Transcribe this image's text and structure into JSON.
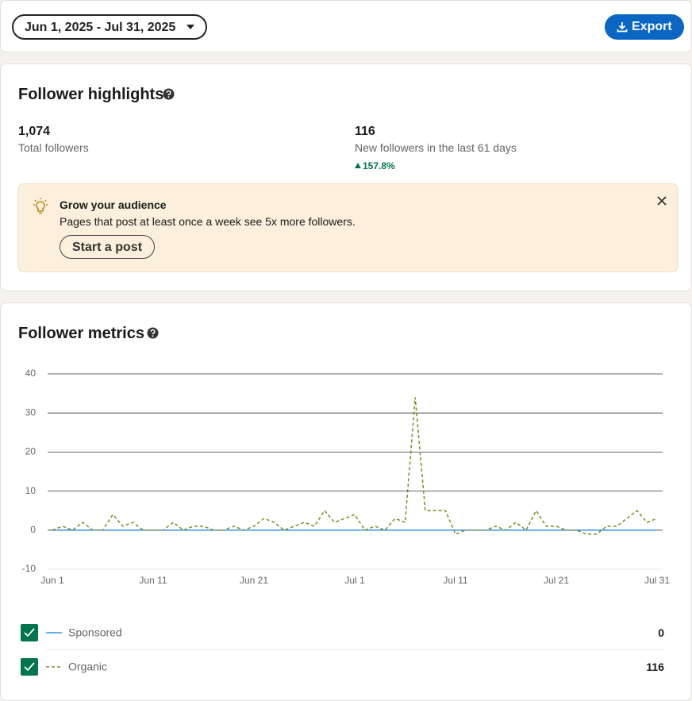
{
  "header": {
    "date_range": "Jun 1, 2025 - Jul 31, 2025",
    "export": "Export"
  },
  "highlights": {
    "title": "Follower highlights",
    "total": {
      "value": "1,074",
      "label": "Total followers"
    },
    "new": {
      "value": "116",
      "label": "New followers in the last 61 days",
      "change": "157.8%"
    },
    "banner": {
      "title": "Grow your audience",
      "text": "Pages that post at least once a week see 5x more followers.",
      "button": "Start a post"
    }
  },
  "metrics": {
    "title": "Follower metrics"
  },
  "chart_data": {
    "type": "line",
    "categories": [
      "Jun 1",
      null,
      null,
      null,
      null,
      null,
      null,
      null,
      null,
      null,
      "Jun 11",
      null,
      null,
      null,
      null,
      null,
      null,
      null,
      null,
      null,
      "Jun 21",
      null,
      null,
      null,
      null,
      null,
      null,
      null,
      null,
      null,
      "Jul 1",
      null,
      null,
      null,
      null,
      null,
      null,
      null,
      null,
      null,
      "Jul 11",
      null,
      null,
      null,
      null,
      null,
      null,
      null,
      null,
      null,
      "Jul 21",
      null,
      null,
      null,
      null,
      null,
      null,
      null,
      null,
      null,
      "Jul 31"
    ],
    "series": [
      {
        "name": "Sponsored",
        "color": "#378fe9",
        "dashed": false,
        "total": 0,
        "values": [
          0,
          0,
          0,
          0,
          0,
          0,
          0,
          0,
          0,
          0,
          0,
          0,
          0,
          0,
          0,
          0,
          0,
          0,
          0,
          0,
          0,
          0,
          0,
          0,
          0,
          0,
          0,
          0,
          0,
          0,
          0,
          0,
          0,
          0,
          0,
          0,
          0,
          0,
          0,
          0,
          0,
          0,
          0,
          0,
          0,
          0,
          0,
          0,
          0,
          0,
          0,
          0,
          0,
          0,
          0,
          0,
          0,
          0,
          0,
          0,
          0
        ]
      },
      {
        "name": "Organic",
        "color": "#7a8c1a",
        "dashed": true,
        "total": 116,
        "values": [
          0,
          1,
          0,
          2,
          0,
          0,
          4,
          1,
          2,
          0,
          0,
          0,
          2,
          0,
          1,
          1,
          0,
          0,
          1,
          0,
          1,
          3,
          2,
          0,
          1,
          2,
          1,
          5,
          2,
          3,
          4,
          0,
          1,
          0,
          3,
          2,
          34,
          5,
          5,
          5,
          -1,
          0,
          0,
          0,
          1,
          0,
          2,
          0,
          5,
          1,
          1,
          0,
          0,
          -1,
          -1,
          1,
          1,
          3,
          5,
          2,
          3
        ]
      }
    ],
    "ylim": [
      -10,
      40
    ],
    "yticks": [
      -10,
      0,
      10,
      20,
      30,
      40
    ],
    "grid": true
  }
}
